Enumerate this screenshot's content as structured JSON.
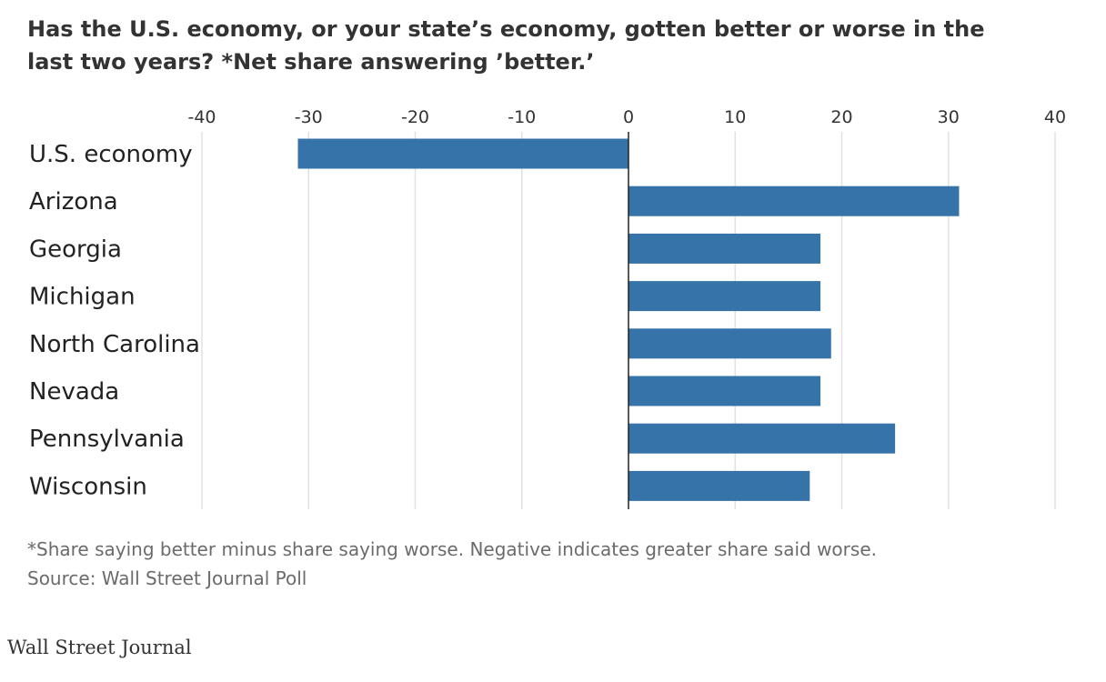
{
  "chart_data": {
    "type": "bar",
    "orientation": "horizontal",
    "title": "Has the U.S. economy, or your state’s economy, gotten better or worse in the last two years? *Net share answering ’better.’",
    "categories": [
      "U.S. economy",
      "Arizona",
      "Georgia",
      "Michigan",
      "North Carolina",
      "Nevada",
      "Pennsylvania",
      "Wisconsin"
    ],
    "values": [
      -31,
      31,
      18,
      18,
      19,
      18,
      25,
      17
    ],
    "xlim": [
      -40,
      40
    ],
    "xticks": [
      -40,
      -30,
      -20,
      -10,
      0,
      10,
      20,
      30,
      40
    ],
    "xtick_position": "top",
    "grid": true,
    "legend": "none",
    "bar_color": "#3573a8",
    "note": "*Share saying better minus share saying worse. Negative indicates greater share said worse.",
    "source": "Source: Wall Street Journal Poll"
  },
  "brand": "Wall Street Journal"
}
